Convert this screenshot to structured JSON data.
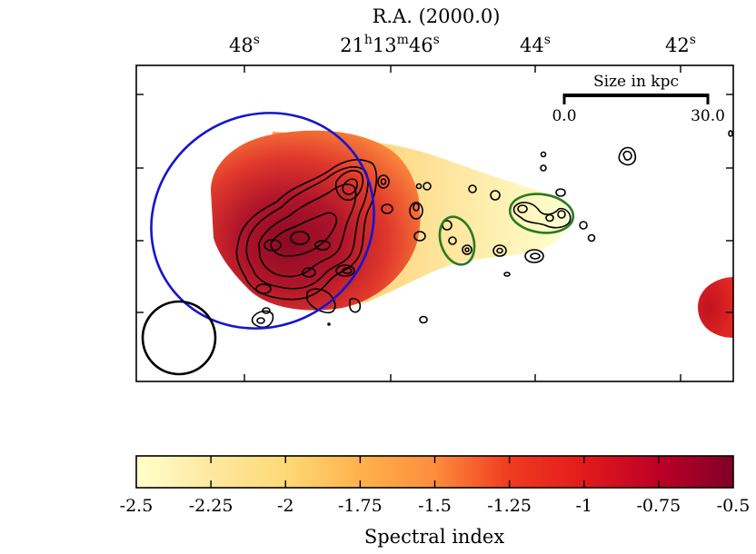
{
  "chart_data": {
    "type": "heatmap",
    "title": "",
    "xlabel": "R.A. (2000.0)",
    "ra_ticks": [
      {
        "sec": 48,
        "hours": "",
        "minutes": "",
        "seconds": "48",
        "label_type": "short"
      },
      {
        "sec": 46,
        "hours": "21",
        "minutes": "13",
        "seconds": "46",
        "label_type": "full"
      },
      {
        "sec": 44,
        "hours": "",
        "minutes": "",
        "seconds": "44",
        "label_type": "short"
      },
      {
        "sec": 42,
        "hours": "",
        "minutes": "",
        "seconds": "42",
        "label_type": "short"
      }
    ],
    "unit_symbols": {
      "h": "h",
      "m": "m",
      "s": "s"
    },
    "scalebar": {
      "title": "Size in kpc",
      "start_label": "0.0",
      "end_label": "30.0",
      "start_kpc": 0.0,
      "end_kpc": 30.0
    },
    "colorbar": {
      "label": "Spectral index",
      "range": [
        -2.5,
        -0.5
      ],
      "ticks": [
        -2.5,
        -2.25,
        -2.0,
        -1.75,
        -1.5,
        -1.25,
        -1.0,
        -0.75,
        -0.5
      ],
      "tick_labels": [
        "-2.5",
        "-2.25",
        "-2",
        "-1.75",
        "-1.5",
        "-1.25",
        "-1",
        "-0.75",
        "-0.5"
      ],
      "colormap": [
        "#ffffcc",
        "#fee8a0",
        "#fed976",
        "#feb24c",
        "#fd8d3c",
        "#f03b20",
        "#e31a1c",
        "#bd0026",
        "#800026"
      ]
    },
    "overlays": [
      {
        "name": "blue-ellipse",
        "color": "#1515d0"
      },
      {
        "name": "green-ellipse-1",
        "color": "#2a7a1e"
      },
      {
        "name": "green-ellipse-2",
        "color": "#2a7a1e"
      },
      {
        "name": "beam-circle",
        "color": "#000000"
      }
    ]
  }
}
